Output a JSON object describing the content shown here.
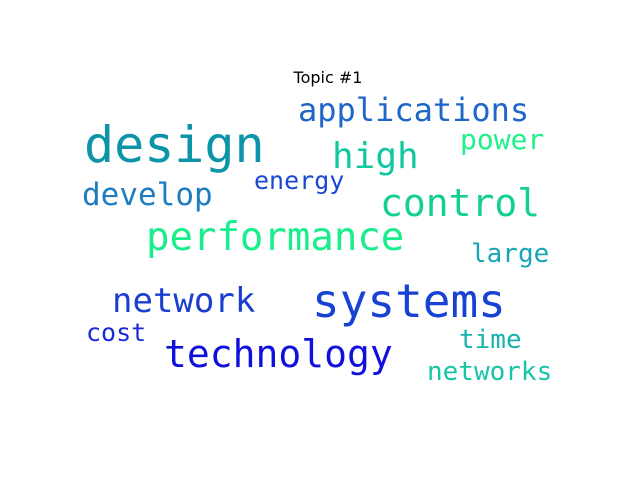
{
  "title": "Topic #1",
  "words": {
    "design": {
      "text": "design",
      "color": "#0c95a8"
    },
    "systems": {
      "text": "systems",
      "color": "#1842d4"
    },
    "performance": {
      "text": "performance",
      "color": "#18ee8c"
    },
    "technology": {
      "text": "technology",
      "color": "#1010dc"
    },
    "network": {
      "text": "network",
      "color": "#1a3ed0"
    },
    "applications": {
      "text": "applications",
      "color": "#1e66c8"
    },
    "high": {
      "text": "high",
      "color": "#10c8a0"
    },
    "control": {
      "text": "control",
      "color": "#14d090"
    },
    "develop": {
      "text": "develop",
      "color": "#1e7cc0"
    },
    "power": {
      "text": "power",
      "color": "#20f28a"
    },
    "energy": {
      "text": "energy",
      "color": "#1a48d2"
    },
    "large": {
      "text": "large",
      "color": "#18a6b6"
    },
    "time": {
      "text": "time",
      "color": "#14b4ac"
    },
    "networks": {
      "text": "networks",
      "color": "#18c4a6"
    },
    "cost": {
      "text": "cost",
      "color": "#1a2ad8"
    }
  }
}
